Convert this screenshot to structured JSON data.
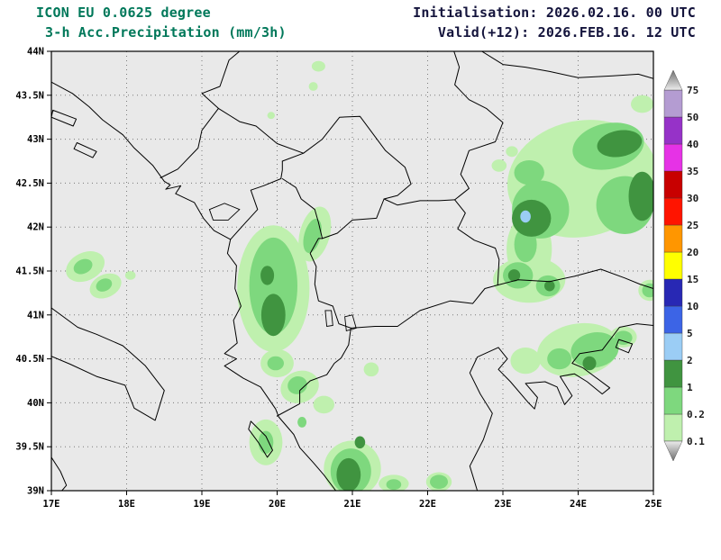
{
  "header": {
    "model": "ICON EU 0.0625 degree",
    "product": "3-h Acc.Precipitation (mm/3h)",
    "initialisation": "Initialisation: 2026.02.16. 00 UTC",
    "valid": "Valid(+12): 2026.FEB.16. 12 UTC",
    "title_color": "#00785a",
    "info_color": "#14143c"
  },
  "chart_data": {
    "type": "heatmap",
    "variant": "filled-contour precipitation forecast map",
    "title": "ICON EU 0.0625 degree 3-h Acc.Precipitation (mm/3h)",
    "model": "ICON EU 0.0625 degree",
    "initialisation": "2026.02.16. 00 UTC",
    "valid": "2026.FEB.16. 12 UTC",
    "lead_time_hours": 12,
    "units": "mm/3h",
    "background_color": "#e9e9e9",
    "axes": {
      "lon_range": [
        17,
        25
      ],
      "lat_range": [
        39,
        44
      ],
      "grid": true,
      "lon_ticks": [
        {
          "value": 17,
          "label": "17E"
        },
        {
          "value": 18,
          "label": "18E"
        },
        {
          "value": 19,
          "label": "19E"
        },
        {
          "value": 20,
          "label": "20E"
        },
        {
          "value": 21,
          "label": "21E"
        },
        {
          "value": 22,
          "label": "22E"
        },
        {
          "value": 23,
          "label": "23E"
        },
        {
          "value": 24,
          "label": "24E"
        },
        {
          "value": 25,
          "label": "25E"
        }
      ],
      "lat_ticks": [
        {
          "value": 44,
          "label": "44N"
        },
        {
          "value": 43.5,
          "label": "43.5N"
        },
        {
          "value": 43,
          "label": "43N"
        },
        {
          "value": 42.5,
          "label": "42.5N"
        },
        {
          "value": 42,
          "label": "42N"
        },
        {
          "value": 41.5,
          "label": "41.5N"
        },
        {
          "value": 41,
          "label": "41N"
        },
        {
          "value": 40.5,
          "label": "40.5N"
        },
        {
          "value": 40,
          "label": "40N"
        },
        {
          "value": 39.5,
          "label": "39.5N"
        },
        {
          "value": 39,
          "label": "39N"
        }
      ]
    },
    "colorbar": {
      "units": "mm/3h",
      "levels": [
        0.1,
        0.2,
        1,
        2,
        5,
        10,
        15,
        20,
        25,
        30,
        35,
        40,
        50,
        75
      ],
      "labels": [
        "0.1",
        "0.2",
        "1",
        "2",
        "5",
        "10",
        "15",
        "20",
        "25",
        "30",
        "35",
        "40",
        "50",
        "75"
      ],
      "colors": [
        "#bff0ae",
        "#7ed87e",
        "#409440",
        "#9bcdf5",
        "#3c64e6",
        "#2828b4",
        "#ffff00",
        "#ff9600",
        "#ff1400",
        "#c80000",
        "#e632e6",
        "#9632c8",
        "#b49cd2"
      ],
      "overflow_arrows": true
    },
    "precipitation_areas": [
      {
        "lon": 20.55,
        "lat": 43.83,
        "rx": 0.09,
        "ry": 0.06,
        "rot": 0,
        "level": 0.1
      },
      {
        "lon": 20.48,
        "lat": 43.6,
        "rx": 0.06,
        "ry": 0.05,
        "rot": 0,
        "level": 0.1
      },
      {
        "lon": 19.92,
        "lat": 43.27,
        "rx": 0.05,
        "ry": 0.04,
        "rot": 0,
        "level": 0.1
      },
      {
        "lon": 17.45,
        "lat": 41.55,
        "rx": 0.27,
        "ry": 0.16,
        "rot": -25,
        "level": 0.1
      },
      {
        "lon": 17.72,
        "lat": 41.33,
        "rx": 0.22,
        "ry": 0.13,
        "rot": -25,
        "level": 0.1
      },
      {
        "lon": 18.05,
        "lat": 41.45,
        "rx": 0.07,
        "ry": 0.05,
        "rot": 0,
        "level": 0.1
      },
      {
        "lon": 19.95,
        "lat": 41.3,
        "rx": 0.48,
        "ry": 0.72,
        "rot": 0,
        "level": 0.1
      },
      {
        "lon": 20.5,
        "lat": 41.92,
        "rx": 0.2,
        "ry": 0.32,
        "rot": 15,
        "level": 0.1
      },
      {
        "lon": 20.0,
        "lat": 40.45,
        "rx": 0.22,
        "ry": 0.16,
        "rot": 0,
        "level": 0.1
      },
      {
        "lon": 20.3,
        "lat": 40.18,
        "rx": 0.26,
        "ry": 0.18,
        "rot": -20,
        "level": 0.1
      },
      {
        "lon": 20.62,
        "lat": 39.98,
        "rx": 0.14,
        "ry": 0.1,
        "rot": 0,
        "level": 0.1
      },
      {
        "lon": 21.25,
        "lat": 40.38,
        "rx": 0.1,
        "ry": 0.08,
        "rot": 0,
        "level": 0.1
      },
      {
        "lon": 19.85,
        "lat": 39.55,
        "rx": 0.22,
        "ry": 0.26,
        "rot": 0,
        "level": 0.1
      },
      {
        "lon": 21.0,
        "lat": 39.25,
        "rx": 0.38,
        "ry": 0.32,
        "rot": 0,
        "level": 0.1
      },
      {
        "lon": 21.55,
        "lat": 39.08,
        "rx": 0.2,
        "ry": 0.1,
        "rot": 0,
        "level": 0.1
      },
      {
        "lon": 22.15,
        "lat": 39.1,
        "rx": 0.17,
        "ry": 0.11,
        "rot": 0,
        "level": 0.1
      },
      {
        "lon": 24.05,
        "lat": 42.55,
        "rx": 1.0,
        "ry": 0.66,
        "rot": -12,
        "level": 0.1
      },
      {
        "lon": 24.85,
        "lat": 43.4,
        "rx": 0.15,
        "ry": 0.1,
        "rot": 0,
        "level": 0.1
      },
      {
        "lon": 22.95,
        "lat": 42.7,
        "rx": 0.1,
        "ry": 0.07,
        "rot": 0,
        "level": 0.1
      },
      {
        "lon": 23.12,
        "lat": 42.86,
        "rx": 0.08,
        "ry": 0.06,
        "rot": 0,
        "level": 0.1
      },
      {
        "lon": 23.35,
        "lat": 41.75,
        "rx": 0.3,
        "ry": 0.4,
        "rot": 0,
        "level": 0.1
      },
      {
        "lon": 23.35,
        "lat": 41.4,
        "rx": 0.48,
        "ry": 0.26,
        "rot": 0,
        "level": 0.1
      },
      {
        "lon": 24.95,
        "lat": 41.28,
        "rx": 0.15,
        "ry": 0.12,
        "rot": 0,
        "level": 0.1
      },
      {
        "lon": 24.0,
        "lat": 40.6,
        "rx": 0.55,
        "ry": 0.3,
        "rot": -10,
        "level": 0.1
      },
      {
        "lon": 23.3,
        "lat": 40.48,
        "rx": 0.2,
        "ry": 0.15,
        "rot": 0,
        "level": 0.1
      },
      {
        "lon": 24.6,
        "lat": 40.75,
        "rx": 0.18,
        "ry": 0.12,
        "rot": 0,
        "level": 0.1
      },
      {
        "lon": 17.42,
        "lat": 41.55,
        "rx": 0.13,
        "ry": 0.08,
        "rot": -25,
        "level": 0.2
      },
      {
        "lon": 17.7,
        "lat": 41.34,
        "rx": 0.11,
        "ry": 0.07,
        "rot": -25,
        "level": 0.2
      },
      {
        "lon": 19.95,
        "lat": 41.33,
        "rx": 0.32,
        "ry": 0.55,
        "rot": 0,
        "level": 0.2
      },
      {
        "lon": 20.47,
        "lat": 41.9,
        "rx": 0.11,
        "ry": 0.2,
        "rot": 15,
        "level": 0.2
      },
      {
        "lon": 19.98,
        "lat": 40.45,
        "rx": 0.11,
        "ry": 0.08,
        "rot": 0,
        "level": 0.2
      },
      {
        "lon": 20.27,
        "lat": 40.2,
        "rx": 0.13,
        "ry": 0.1,
        "rot": -20,
        "level": 0.2
      },
      {
        "lon": 20.33,
        "lat": 39.78,
        "rx": 0.06,
        "ry": 0.06,
        "rot": 0,
        "level": 0.2
      },
      {
        "lon": 19.85,
        "lat": 39.55,
        "rx": 0.1,
        "ry": 0.13,
        "rot": 0,
        "level": 0.2
      },
      {
        "lon": 20.98,
        "lat": 39.22,
        "rx": 0.27,
        "ry": 0.26,
        "rot": 0,
        "level": 0.2
      },
      {
        "lon": 21.55,
        "lat": 39.07,
        "rx": 0.1,
        "ry": 0.06,
        "rot": 0,
        "level": 0.2
      },
      {
        "lon": 22.15,
        "lat": 39.1,
        "rx": 0.12,
        "ry": 0.08,
        "rot": 0,
        "level": 0.2
      },
      {
        "lon": 23.5,
        "lat": 42.2,
        "rx": 0.38,
        "ry": 0.33,
        "rot": 0,
        "level": 0.2
      },
      {
        "lon": 24.4,
        "lat": 42.92,
        "rx": 0.48,
        "ry": 0.26,
        "rot": -12,
        "level": 0.2
      },
      {
        "lon": 24.62,
        "lat": 42.25,
        "rx": 0.38,
        "ry": 0.33,
        "rot": 0,
        "level": 0.2
      },
      {
        "lon": 23.35,
        "lat": 42.62,
        "rx": 0.2,
        "ry": 0.14,
        "rot": 0,
        "level": 0.2
      },
      {
        "lon": 23.3,
        "lat": 41.8,
        "rx": 0.15,
        "ry": 0.2,
        "rot": 0,
        "level": 0.2
      },
      {
        "lon": 23.2,
        "lat": 41.45,
        "rx": 0.2,
        "ry": 0.15,
        "rot": 0,
        "level": 0.2
      },
      {
        "lon": 23.6,
        "lat": 41.33,
        "rx": 0.16,
        "ry": 0.12,
        "rot": 0,
        "level": 0.2
      },
      {
        "lon": 24.95,
        "lat": 41.28,
        "rx": 0.1,
        "ry": 0.08,
        "rot": 0,
        "level": 0.2
      },
      {
        "lon": 24.22,
        "lat": 40.6,
        "rx": 0.32,
        "ry": 0.2,
        "rot": -10,
        "level": 0.2
      },
      {
        "lon": 23.75,
        "lat": 40.5,
        "rx": 0.16,
        "ry": 0.12,
        "rot": 0,
        "level": 0.2
      },
      {
        "lon": 24.6,
        "lat": 40.74,
        "rx": 0.12,
        "ry": 0.08,
        "rot": 0,
        "level": 0.2
      },
      {
        "lon": 19.95,
        "lat": 41.0,
        "rx": 0.16,
        "ry": 0.24,
        "rot": 0,
        "level": 1
      },
      {
        "lon": 19.87,
        "lat": 41.45,
        "rx": 0.09,
        "ry": 0.11,
        "rot": 0,
        "level": 1
      },
      {
        "lon": 20.95,
        "lat": 39.18,
        "rx": 0.16,
        "ry": 0.19,
        "rot": 0,
        "level": 1
      },
      {
        "lon": 21.1,
        "lat": 39.55,
        "rx": 0.07,
        "ry": 0.07,
        "rot": 0,
        "level": 1
      },
      {
        "lon": 23.38,
        "lat": 42.1,
        "rx": 0.26,
        "ry": 0.21,
        "rot": 0,
        "level": 1
      },
      {
        "lon": 24.55,
        "lat": 42.95,
        "rx": 0.3,
        "ry": 0.15,
        "rot": -10,
        "level": 1
      },
      {
        "lon": 24.85,
        "lat": 42.35,
        "rx": 0.18,
        "ry": 0.28,
        "rot": 0,
        "level": 1
      },
      {
        "lon": 23.15,
        "lat": 41.45,
        "rx": 0.08,
        "ry": 0.07,
        "rot": 0,
        "level": 1
      },
      {
        "lon": 23.62,
        "lat": 41.33,
        "rx": 0.07,
        "ry": 0.06,
        "rot": 0,
        "level": 1
      },
      {
        "lon": 24.15,
        "lat": 40.45,
        "rx": 0.09,
        "ry": 0.08,
        "rot": 0,
        "level": 1
      },
      {
        "lon": 23.3,
        "lat": 42.12,
        "rx": 0.07,
        "ry": 0.07,
        "rot": 0,
        "level": 2
      }
    ]
  }
}
